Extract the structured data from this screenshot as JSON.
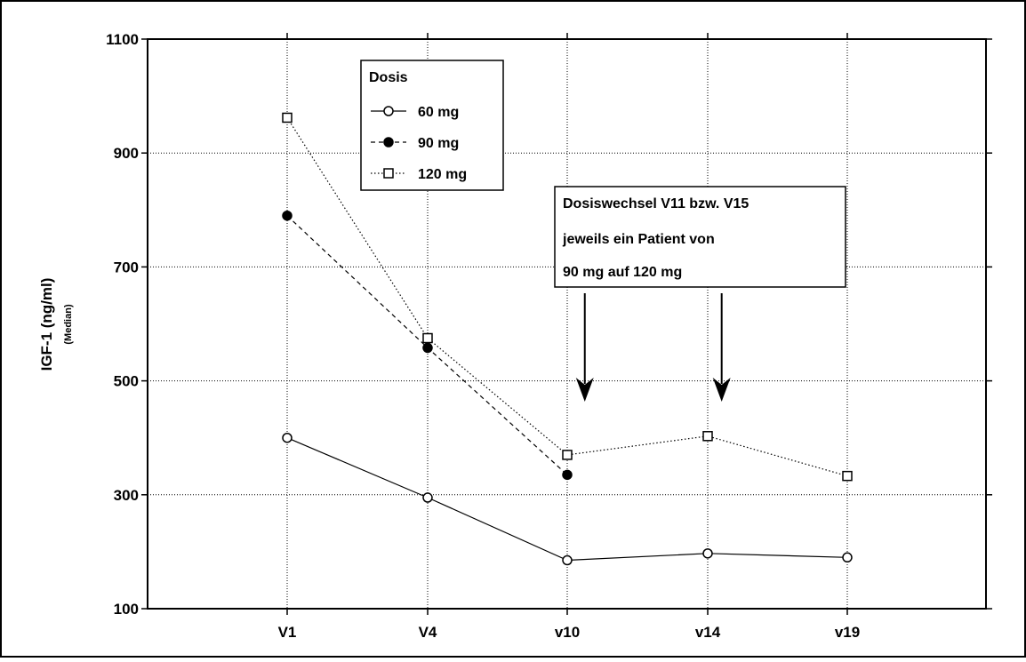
{
  "chart_data": {
    "type": "line",
    "categories": [
      "V1",
      "V4",
      "v10",
      "v14",
      "v19"
    ],
    "ylabel": "IGF-1 (ng/ml)",
    "ylabel_sub": "(Median)",
    "ylim": [
      100,
      1100
    ],
    "yticks": [
      100,
      300,
      500,
      700,
      900,
      1100
    ],
    "grid": true,
    "legend": {
      "title": "Dosis",
      "placement": "top-left"
    },
    "series": [
      {
        "name": "60 mg",
        "marker": "open-circle",
        "line": "solid",
        "values": [
          400,
          295,
          185,
          197,
          190
        ]
      },
      {
        "name": "90 mg",
        "marker": "filled-circle",
        "line": "dashed",
        "values": [
          790,
          558,
          335,
          null,
          null
        ]
      },
      {
        "name": "120 mg",
        "marker": "open-square",
        "line": "dotted",
        "values": [
          962,
          575,
          370,
          403,
          333
        ]
      }
    ],
    "annotation": {
      "lines": [
        "Dosiswechsel V11 bzw. V15",
        "jeweils ein Patient von",
        "90 mg auf 120 mg"
      ],
      "arrow_positions": [
        10.5,
        14.5
      ]
    },
    "colors": {
      "lines": "#000000",
      "grid": "#000000",
      "background": "#ffffff"
    }
  }
}
